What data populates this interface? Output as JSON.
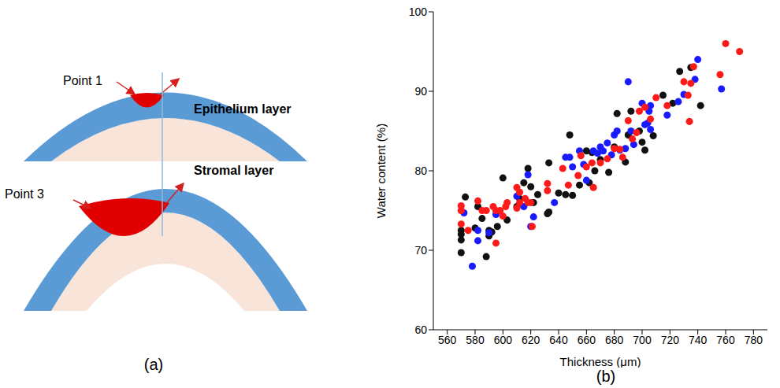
{
  "diagram": {
    "label": "(a)",
    "parts": [
      {
        "point": "Point 1",
        "layer": "Epithelium layer"
      },
      {
        "point": "Point 3",
        "layer": "Stromal layer"
      }
    ]
  },
  "chart_data": {
    "label": "(b)",
    "type": "scatter",
    "x_label": "Thickness (μm)",
    "y_label": "Water content (%)",
    "xlim": [
      550,
      790
    ],
    "xticks": [
      560,
      580,
      600,
      620,
      640,
      660,
      680,
      700,
      720,
      740,
      760,
      780
    ],
    "ylim": [
      60,
      100
    ],
    "yticks": [
      60,
      70,
      80,
      90,
      100
    ],
    "grid": false,
    "marker": "circle",
    "series": [
      {
        "color": "#111111",
        "x": [
          570,
          570,
          570,
          570,
          573,
          580,
          582,
          585,
          588,
          590,
          592,
          596,
          600,
          603,
          610,
          612,
          615,
          620,
          622,
          625,
          632,
          633,
          633,
          640,
          645,
          648,
          650,
          655,
          660,
          664,
          666,
          670,
          676,
          680,
          682,
          688,
          690,
          692,
          698,
          700,
          702,
          708,
          715,
          722,
          727,
          735,
          742,
          662,
          618,
          590
        ],
        "values": [
          69.7,
          71.3,
          72.5,
          72,
          76.7,
          72.8,
          75.5,
          74,
          69.2,
          72.5,
          72.3,
          73,
          79.1,
          73.8,
          75.5,
          76.5,
          78.5,
          78,
          76,
          77,
          74.6,
          74.8,
          81,
          77.2,
          77,
          84.5,
          76.9,
          78.2,
          82.5,
          82.3,
          80,
          81.4,
          79.8,
          83,
          87.2,
          81.1,
          84.5,
          87.5,
          85,
          83.6,
          82.6,
          84.4,
          89.5,
          88.5,
          92.5,
          93,
          88.2,
          78.5,
          80.3,
          71.8
        ]
      },
      {
        "color": "#1a1aff",
        "x": [
          572,
          578,
          582,
          582,
          595,
          610,
          615,
          620,
          622,
          637,
          645,
          648,
          650,
          655,
          658,
          660,
          665,
          668,
          670,
          672,
          675,
          678,
          680,
          682,
          684,
          688,
          690,
          692,
          694,
          700,
          702,
          704,
          705,
          706,
          706,
          718,
          726,
          730,
          738,
          740,
          757,
          590,
          618
        ],
        "values": [
          74.7,
          68,
          71.2,
          72.5,
          74.5,
          76.8,
          75.5,
          73,
          74.2,
          76,
          81.7,
          81.7,
          80.5,
          82.5,
          80.8,
          78.8,
          82.5,
          82.2,
          83,
          82.5,
          83.5,
          82,
          84.5,
          85,
          82.6,
          82.8,
          91.2,
          85,
          83.3,
          88.5,
          85.8,
          86,
          87.5,
          88.2,
          85.2,
          87,
          88.7,
          89.6,
          91.5,
          94,
          90.3,
          72.2,
          79.5
        ]
      },
      {
        "color": "#ff1a1a",
        "x": [
          570,
          570,
          570,
          575,
          582,
          585,
          588,
          593,
          595,
          595,
          598,
          600,
          602,
          603,
          610,
          610,
          612,
          616,
          618,
          620,
          621,
          632,
          632,
          643,
          647,
          654,
          656,
          660,
          664,
          665,
          670,
          675,
          680,
          684,
          686,
          690,
          693,
          696,
          698,
          702,
          706,
          710,
          718,
          730,
          733,
          734,
          735,
          737,
          756,
          760,
          770,
          612
        ],
        "values": [
          73.3,
          75,
          75.6,
          72.5,
          76.2,
          75,
          75,
          75.5,
          70.9,
          75,
          75,
          74.3,
          75.5,
          76,
          77.9,
          75.3,
          76,
          76.5,
          76,
          76,
          73,
          77.5,
          78.4,
          80.3,
          78.2,
          79.4,
          81.9,
          80.5,
          81,
          77.9,
          81,
          81.5,
          82.8,
          82.7,
          81.7,
          86.3,
          84,
          84.8,
          87.5,
          88,
          86.5,
          89.2,
          88.2,
          91.2,
          89.5,
          86.2,
          91,
          93.1,
          92.1,
          96,
          95,
          77.3
        ]
      }
    ]
  }
}
